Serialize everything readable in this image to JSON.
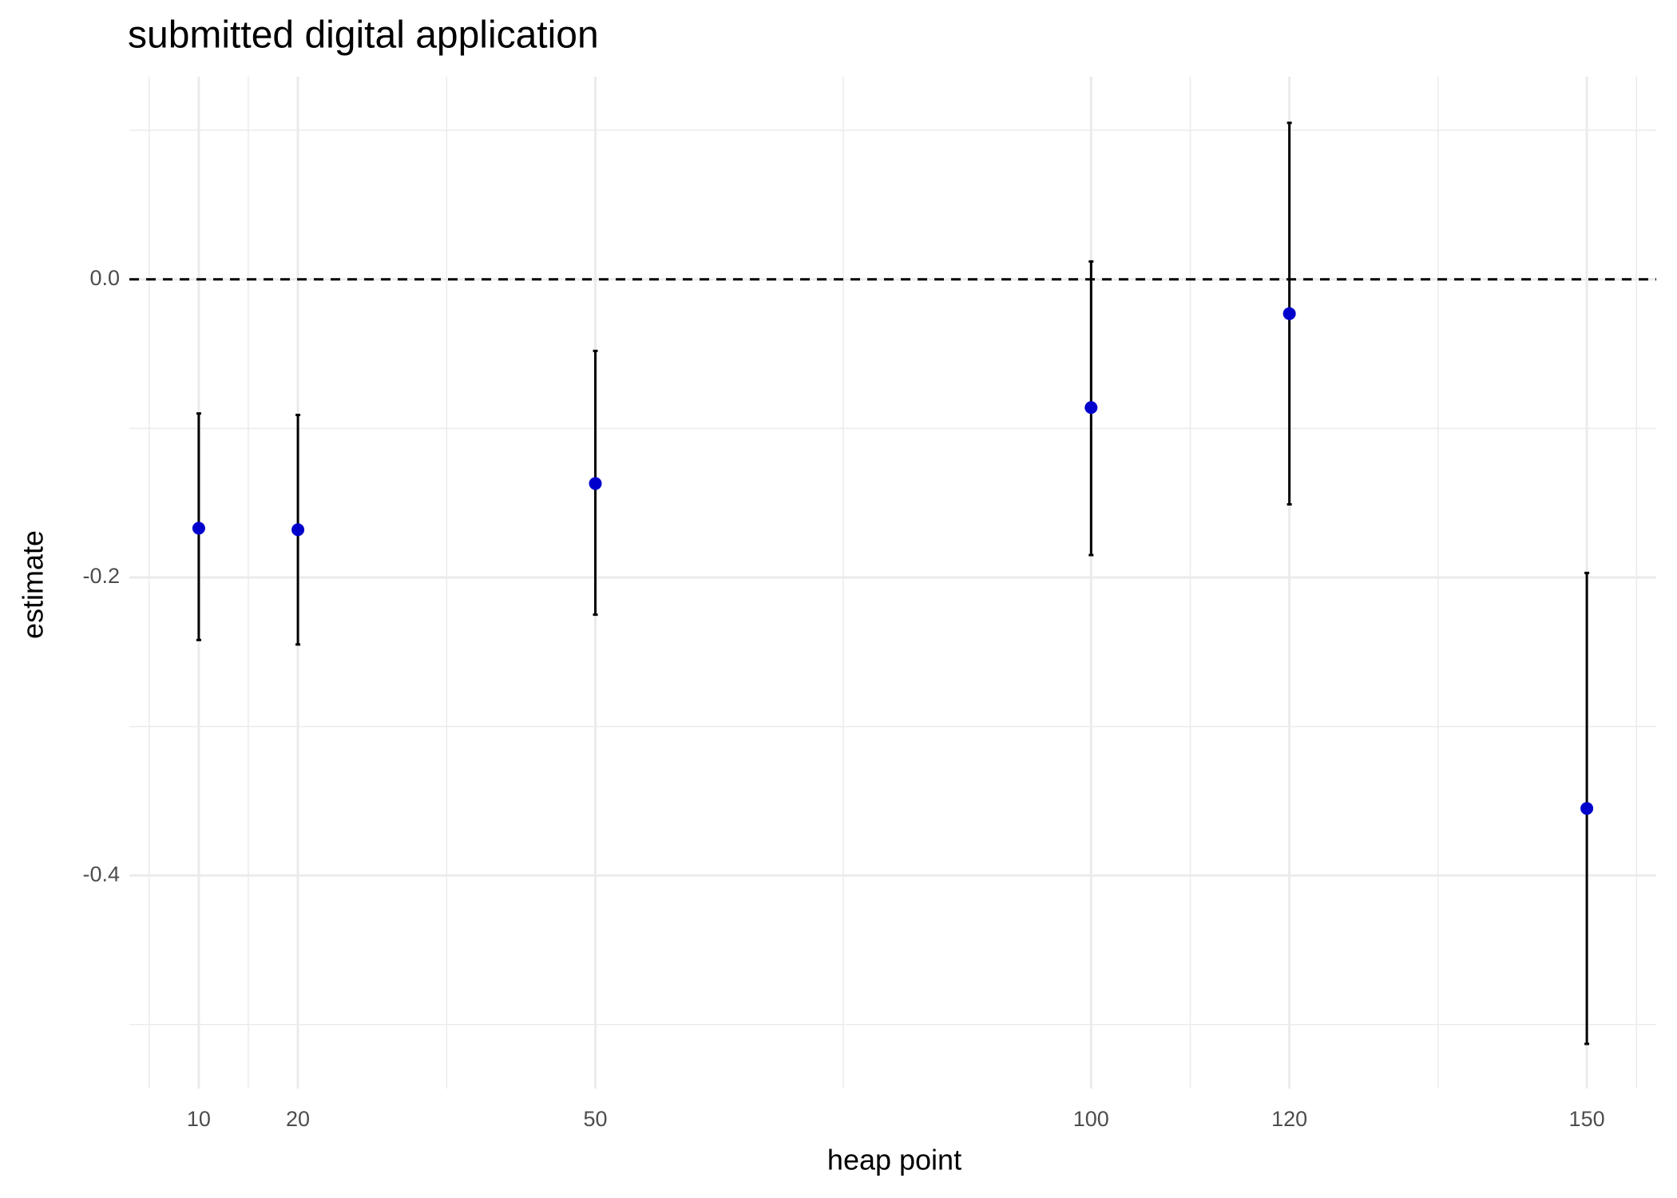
{
  "chart_data": {
    "type": "errorbar",
    "title": "submitted digital application",
    "x_label": "heap point",
    "y_label": "estimate",
    "series": [
      {
        "x": [
          10,
          20,
          50,
          100,
          120,
          150
        ],
        "values": [
          -0.167,
          -0.168,
          -0.137,
          -0.086,
          -0.023,
          -0.355
        ],
        "lower": [
          -0.242,
          -0.245,
          -0.225,
          -0.185,
          -0.151,
          -0.513
        ],
        "upper": [
          -0.09,
          -0.091,
          -0.048,
          0.012,
          0.105,
          -0.197
        ],
        "color": "#0000cd",
        "bar_color": "#000000"
      }
    ],
    "xlim": [
      3,
      157
    ],
    "ylim": [
      -0.543,
      0.136
    ],
    "xticks": [
      10,
      20,
      50,
      100,
      120,
      150
    ],
    "yticks": [
      {
        "value": 0,
        "label": "0.0"
      },
      -0.2,
      -0.4
    ],
    "x_minor_ticks": [
      5,
      15,
      35,
      75,
      110,
      135,
      155
    ],
    "y_minor_ticks": [
      0.1,
      -0.1,
      -0.3,
      -0.5
    ],
    "hline": 0,
    "grid": true
  }
}
